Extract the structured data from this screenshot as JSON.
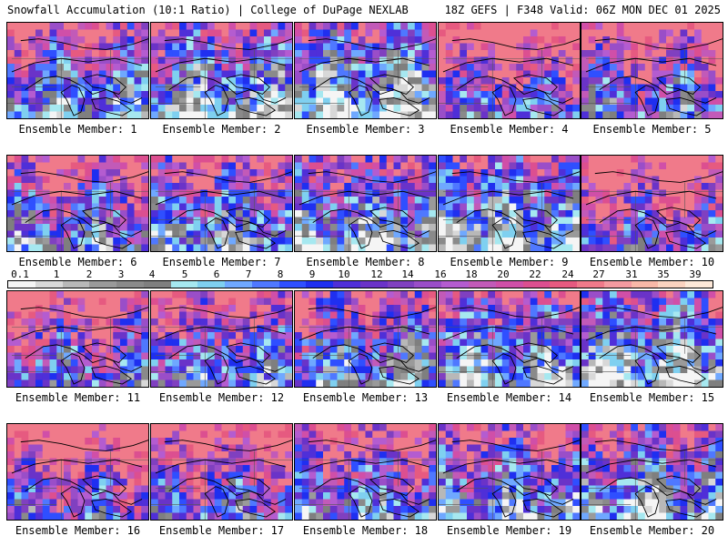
{
  "header": {
    "title_left": "Snowfall Accumulation (10:1 Ratio) | College of DuPage NEXLAB",
    "title_right": "18Z GEFS | F348 Valid: 06Z MON DEC 01 2025"
  },
  "members": [
    {
      "label": "Ensemble Member: 1"
    },
    {
      "label": "Ensemble Member: 2"
    },
    {
      "label": "Ensemble Member: 3"
    },
    {
      "label": "Ensemble Member: 4"
    },
    {
      "label": "Ensemble Member: 5"
    },
    {
      "label": "Ensemble Member: 6"
    },
    {
      "label": "Ensemble Member: 7"
    },
    {
      "label": "Ensemble Member: 8"
    },
    {
      "label": "Ensemble Member: 9"
    },
    {
      "label": "Ensemble Member: 10"
    },
    {
      "label": "Ensemble Member: 11"
    },
    {
      "label": "Ensemble Member: 12"
    },
    {
      "label": "Ensemble Member: 13"
    },
    {
      "label": "Ensemble Member: 14"
    },
    {
      "label": "Ensemble Member: 15"
    },
    {
      "label": "Ensemble Member: 16"
    },
    {
      "label": "Ensemble Member: 17"
    },
    {
      "label": "Ensemble Member: 18"
    },
    {
      "label": "Ensemble Member: 19"
    },
    {
      "label": "Ensemble Member: 20"
    }
  ],
  "legend": {
    "labels": [
      "0.1",
      "1",
      "2",
      "3",
      "4",
      "5",
      "6",
      "7",
      "8",
      "9",
      "10",
      "12",
      "14",
      "16",
      "18",
      "20",
      "22",
      "24",
      "27",
      "31",
      "35",
      "39"
    ],
    "colors": [
      "#f5f5f5",
      "#d8d8d8",
      "#b8b8b8",
      "#9a9a9a",
      "#8a8a8a",
      "#7f7f7f",
      "#a6e8f0",
      "#7fd0f0",
      "#6fa8ff",
      "#4f78ff",
      "#2f4fff",
      "#1f2ff0",
      "#4f2fd8",
      "#6a33c8",
      "#8040c0",
      "#9a4ec8",
      "#b45cd0",
      "#c25ab8",
      "#d04fa8",
      "#dc4f90",
      "#e65a80",
      "#f07a8a",
      "#f49aa0",
      "#f8b8a8",
      "#fbd3c0",
      "#fde8d8"
    ]
  }
}
